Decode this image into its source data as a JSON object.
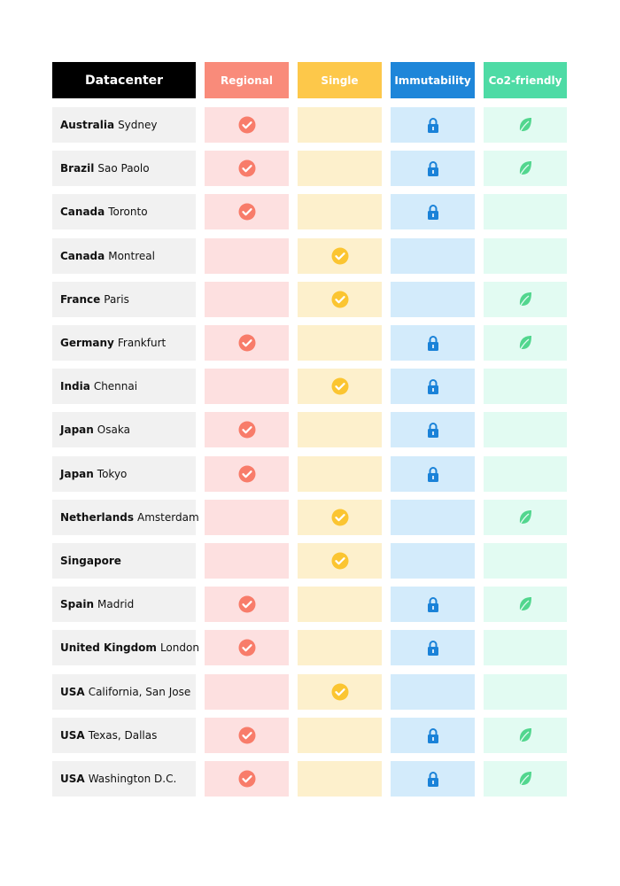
{
  "table": {
    "header": [
      "Datacenter",
      "Regional",
      "Single",
      "Immutability",
      "Co2-friendly"
    ],
    "rows": [
      {
        "country": "Australia",
        "city": "Sydney",
        "regional": true,
        "single": false,
        "immutability": true,
        "co2_friendly": true
      },
      {
        "country": "Brazil",
        "city": "Sao Paolo",
        "regional": true,
        "single": false,
        "immutability": true,
        "co2_friendly": true
      },
      {
        "country": "Canada",
        "city": "Toronto",
        "regional": true,
        "single": false,
        "immutability": true,
        "co2_friendly": false
      },
      {
        "country": "Canada",
        "city": "Montreal",
        "regional": false,
        "single": true,
        "immutability": false,
        "co2_friendly": false
      },
      {
        "country": "France",
        "city": "Paris",
        "regional": false,
        "single": true,
        "immutability": false,
        "co2_friendly": true
      },
      {
        "country": "Germany",
        "city": "Frankfurt",
        "regional": true,
        "single": false,
        "immutability": true,
        "co2_friendly": true
      },
      {
        "country": "India",
        "city": "Chennai",
        "regional": false,
        "single": true,
        "immutability": true,
        "co2_friendly": false
      },
      {
        "country": "Japan",
        "city": "Osaka",
        "regional": true,
        "single": false,
        "immutability": true,
        "co2_friendly": false
      },
      {
        "country": "Japan",
        "city": "Tokyo",
        "regional": true,
        "single": false,
        "immutability": true,
        "co2_friendly": false
      },
      {
        "country": "Netherlands",
        "city": "Amsterdam",
        "regional": false,
        "single": true,
        "immutability": false,
        "co2_friendly": true
      },
      {
        "country": "Singapore",
        "regional": false,
        "single": true,
        "immutability": false,
        "co2_friendly": false
      },
      {
        "country": "Spain",
        "city": "Madrid",
        "regional": true,
        "single": false,
        "immutability": true,
        "co2_friendly": true
      },
      {
        "country": "United Kingdom",
        "city": "London",
        "regional": true,
        "single": false,
        "immutability": true,
        "co2_friendly": false
      },
      {
        "country": "USA",
        "city": "California, San Jose",
        "regional": false,
        "single": true,
        "immutability": false,
        "co2_friendly": false
      },
      {
        "country": "USA",
        "city": "Texas, Dallas",
        "regional": true,
        "single": false,
        "immutability": true,
        "co2_friendly": true
      },
      {
        "country": "USA",
        "city": "Washington D.C.",
        "regional": true,
        "single": false,
        "immutability": true,
        "co2_friendly": true
      }
    ]
  }
}
